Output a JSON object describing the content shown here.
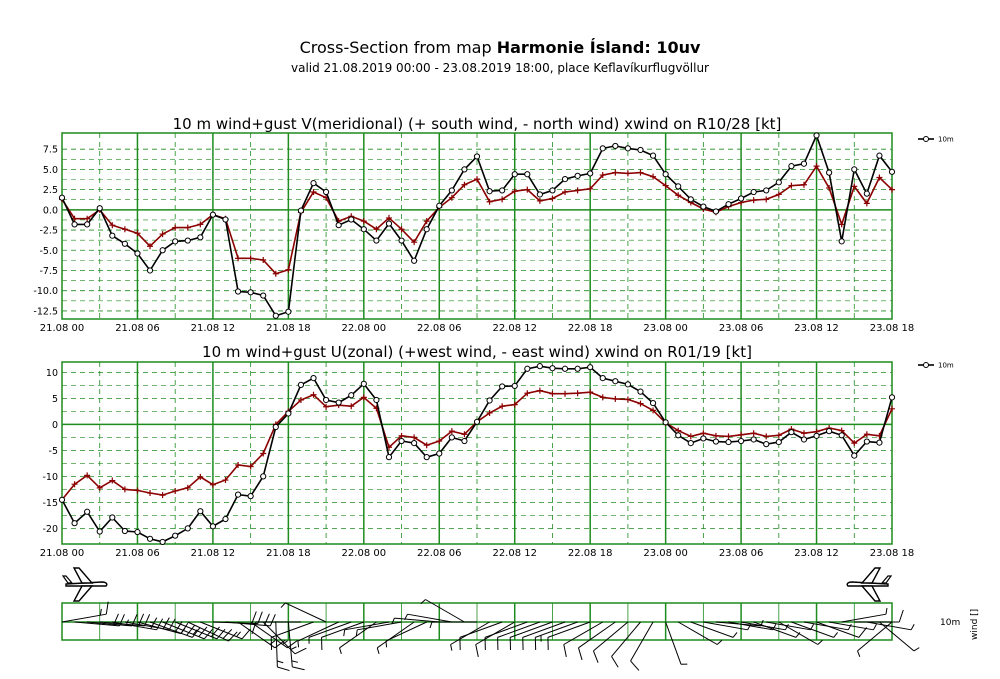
{
  "header": {
    "title_prefix": "Cross-Section from map ",
    "title_bold": "Harmonie Ísland: 10uv",
    "subtitle": "valid 21.08.2019 00:00 - 23.08.2019 18:00, place Keflavíkurflugvöllur"
  },
  "colors": {
    "grid": "#1e8c1e",
    "wind": "#000000",
    "gust": "#8b0000"
  },
  "side_labels": {
    "level": "10m",
    "axis_label": "wind []"
  },
  "chart_data": [
    {
      "type": "line",
      "title": "10 m wind+gust V(meridional) (+ south wind, - north wind) xwind on R10/28 [kt]",
      "x_tick_labels": [
        "21.08 00",
        "21.08 06",
        "21.08 12",
        "21.08 18",
        "22.08 00",
        "22.08 06",
        "22.08 12",
        "22.08 18",
        "23.08 00",
        "23.08 06",
        "23.08 12",
        "23.08 18"
      ],
      "x_range_hours": [
        0,
        66
      ],
      "y_tick_labels": [
        "7.5",
        "5.0",
        "2.5",
        "0.0",
        "-2.5",
        "-5.0",
        "-7.5",
        "-10.0",
        "-12.5"
      ],
      "ylim": [
        -13.5,
        9.5
      ],
      "legend": [
        "10m"
      ],
      "series": [
        {
          "name": "10m",
          "color": "#000000",
          "marker": "circle",
          "values": [
            1.5,
            -1.8,
            -1.8,
            0.2,
            -3.2,
            -4.2,
            -5.4,
            -7.5,
            -5,
            -3.9,
            -3.8,
            -3.4,
            -0.6,
            -1.2,
            -10.1,
            -10.2,
            -10.6,
            -13.1,
            -12.6,
            -0.1,
            3.3,
            2.2,
            -1.9,
            -1.2,
            -2.4,
            -3.8,
            -1.7,
            -3.8,
            -6.3,
            -2.4,
            0.5,
            2.4,
            5,
            6.6,
            2.3,
            2.4,
            4.4,
            4.4,
            1.9,
            2.4,
            3.8,
            4.2,
            4.5,
            7.6,
            7.9,
            7.6,
            7.4,
            6.7,
            4.4,
            2.9,
            1.3,
            0.4,
            -0.2,
            0.7,
            1.4,
            2.2,
            2.4,
            3.4,
            5.4,
            5.7,
            9.2,
            4.6,
            -3.9,
            5,
            2,
            6.7,
            4.7
          ]
        },
        {
          "name": "gust",
          "color": "#8b0000",
          "marker": "plus",
          "values": [
            1.3,
            -1.1,
            -1.1,
            0,
            -1.9,
            -2.4,
            -2.9,
            -4.5,
            -3,
            -2.2,
            -2.2,
            -1.8,
            -0.6,
            -1.1,
            -6,
            -6,
            -6.2,
            -7.9,
            -7.4,
            -0.3,
            2.2,
            1.5,
            -1.4,
            -0.8,
            -1.4,
            -2.4,
            -1,
            -2.4,
            -4,
            -1.4,
            0.3,
            1.5,
            3.1,
            3.8,
            1,
            1.3,
            2.3,
            2.5,
            1.1,
            1.4,
            2.2,
            2.4,
            2.6,
            4.3,
            4.6,
            4.5,
            4.6,
            4.1,
            3,
            1.8,
            0.9,
            0.1,
            -0.3,
            0.4,
            0.9,
            1.2,
            1.3,
            1.9,
            3,
            3.1,
            5.4,
            2.7,
            -1.8,
            2.9,
            0.8,
            4,
            2.5
          ]
        }
      ]
    },
    {
      "type": "line",
      "title": "10 m wind+gust U(zonal) (+west wind, - east wind) xwind on R01/19 [kt]",
      "x_tick_labels": [
        "21.08 00",
        "21.08 06",
        "21.08 12",
        "21.08 18",
        "22.08 00",
        "22.08 06",
        "22.08 12",
        "22.08 18",
        "23.08 00",
        "23.08 06",
        "23.08 12",
        "23.08 18"
      ],
      "x_range_hours": [
        0,
        66
      ],
      "y_tick_labels": [
        "10",
        "5",
        "0",
        "-5",
        "-10",
        "-15",
        "-20"
      ],
      "ylim": [
        -23,
        12
      ],
      "legend": [
        "10m"
      ],
      "series": [
        {
          "name": "10m",
          "color": "#000000",
          "marker": "circle",
          "values": [
            -14.5,
            -19,
            -16.8,
            -20.6,
            -17.9,
            -20.5,
            -20.7,
            -22,
            -22.6,
            -21.4,
            -20,
            -16.7,
            -19.6,
            -18.2,
            -13.5,
            -13.8,
            -10,
            -0.5,
            2.1,
            7.6,
            8.9,
            4.7,
            4.2,
            5.6,
            7.8,
            4.7,
            -6.3,
            -3.2,
            -3.6,
            -6.3,
            -5.6,
            -2.5,
            -3.2,
            0.5,
            4.6,
            7.3,
            7.4,
            10.7,
            11.2,
            10.8,
            10.7,
            10.7,
            11,
            8.9,
            8.3,
            7.7,
            6.3,
            4.1,
            0.4,
            -2.1,
            -3.6,
            -2.7,
            -3.3,
            -3.4,
            -3.2,
            -2.9,
            -3.8,
            -3.4,
            -1.5,
            -2.9,
            -2.2,
            -1.3,
            -2.1,
            -6,
            -3.3,
            -3.5,
            5.2
          ]
        },
        {
          "name": "gust",
          "color": "#8b0000",
          "marker": "plus",
          "values": [
            -14.5,
            -11.5,
            -9.8,
            -12.2,
            -10.8,
            -12.5,
            -12.7,
            -13.2,
            -13.6,
            -12.8,
            -12.2,
            -10.1,
            -11.6,
            -10.7,
            -7.8,
            -8.1,
            -5.6,
            0,
            2.5,
            4.7,
            5.7,
            3.4,
            3.7,
            3.5,
            5.2,
            3.1,
            -4.4,
            -2.2,
            -2.5,
            -4,
            -3.2,
            -1.3,
            -1.9,
            0.5,
            2.2,
            3.5,
            3.8,
            6,
            6.5,
            5.9,
            5.9,
            6,
            6.2,
            5.2,
            4.9,
            4.8,
            4,
            2.7,
            0.3,
            -1.2,
            -2.3,
            -1.7,
            -2.2,
            -2.3,
            -2,
            -1.7,
            -2.3,
            -2.1,
            -0.9,
            -1.7,
            -1.4,
            -0.7,
            -1.2,
            -3.6,
            -1.9,
            -2.2,
            3
          ]
        }
      ]
    }
  ],
  "wind_barbs": {
    "hours": [
      0,
      1,
      2,
      3,
      4,
      5,
      6,
      7,
      8,
      9,
      10,
      11,
      12,
      13,
      14,
      15,
      16,
      17,
      18,
      19,
      20,
      21,
      22,
      23,
      24,
      25,
      26,
      27,
      28,
      29,
      30,
      31,
      32,
      33,
      34,
      35,
      36,
      37,
      38,
      39,
      40,
      41,
      42,
      43,
      44,
      45,
      46,
      47,
      48,
      49,
      50,
      51,
      52,
      53,
      54,
      55,
      56,
      57,
      58,
      59,
      60,
      61,
      62,
      63,
      64,
      65,
      66
    ],
    "speed_kt": [
      14,
      19,
      17,
      20,
      18,
      20,
      21,
      23,
      24,
      22,
      21,
      17,
      20,
      18,
      17,
      17,
      14,
      13,
      13,
      8,
      9,
      5,
      5,
      6,
      8,
      5,
      6,
      4,
      7,
      6,
      6,
      3,
      4,
      5,
      6,
      8,
      8,
      11,
      12,
      12,
      12,
      13,
      12,
      12,
      12,
      11,
      10,
      8,
      5,
      3,
      4,
      3,
      3,
      4,
      4,
      4,
      4,
      4,
      6,
      6,
      9,
      5,
      4,
      8,
      4,
      7,
      7
    ],
    "dir_deg": [
      80,
      95,
      95,
      95,
      100,
      100,
      105,
      110,
      112,
      112,
      115,
      112,
      92,
      95,
      125,
      125,
      135,
      178,
      175,
      270,
      250,
      295,
      245,
      250,
      250,
      235,
      260,
      260,
      235,
      245,
      275,
      280,
      300,
      270,
      240,
      250,
      240,
      250,
      250,
      250,
      250,
      250,
      250,
      240,
      235,
      230,
      220,
      210,
      160,
      120,
      110,
      100,
      95,
      100,
      100,
      110,
      100,
      120,
      110,
      100,
      110,
      100,
      80,
      90,
      100,
      130,
      230
    ]
  }
}
